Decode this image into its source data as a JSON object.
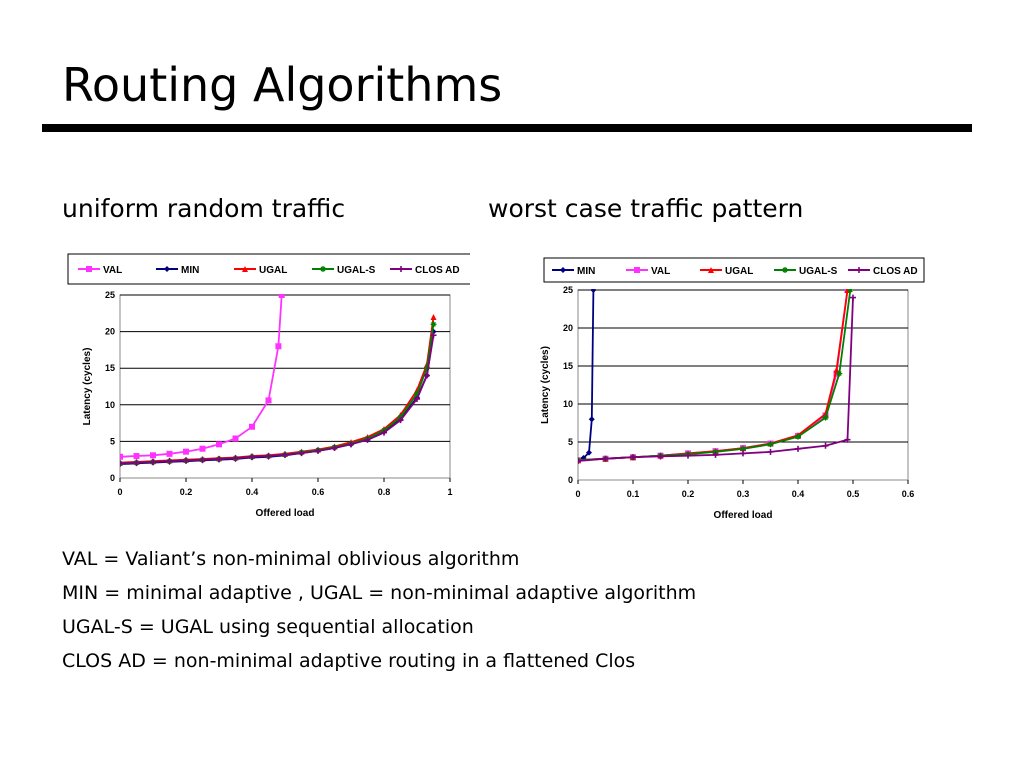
{
  "slide": {
    "title": "Routing Algorithms",
    "subtitle_left": "uniform random traffic",
    "subtitle_right": "worst case traffic pattern",
    "notes": [
      "VAL = Valiant’s non-minimal oblivious algorithm",
      "MIN = minimal adaptive , UGAL = non-minimal adaptive algorithm",
      "UGAL-S = UGAL using sequential allocation",
      "CLOS AD = non-minimal adaptive routing in a flattened Clos"
    ]
  },
  "chart_data": [
    {
      "type": "line",
      "title": "uniform random traffic",
      "xlabel": "Offered load",
      "ylabel": "Latency (cycles)",
      "xlim": [
        0,
        1
      ],
      "ylim": [
        0,
        25
      ],
      "xticks": [
        0,
        0.2,
        0.4,
        0.6,
        0.8,
        1
      ],
      "xtick_labels": [
        "0",
        "0.2",
        "0.4",
        "0.6",
        "0.8",
        "1"
      ],
      "yticks": [
        0,
        5,
        10,
        15,
        20,
        25
      ],
      "ytick_labels": [
        "0",
        "5",
        "10",
        "15",
        "20",
        "25"
      ],
      "grid": "horizontal",
      "legend_position": "top",
      "series": [
        {
          "name": "VAL",
          "color": "#ff33ff",
          "marker": "square",
          "x": [
            0,
            0.05,
            0.1,
            0.15,
            0.2,
            0.25,
            0.3,
            0.35,
            0.4,
            0.45,
            0.48,
            0.49
          ],
          "y": [
            2.9,
            3.0,
            3.1,
            3.3,
            3.6,
            4.0,
            4.6,
            5.4,
            7.0,
            10.6,
            18.0,
            25.0
          ]
        },
        {
          "name": "MIN",
          "color": "#000080",
          "marker": "diamond",
          "x": [
            0,
            0.05,
            0.1,
            0.15,
            0.2,
            0.25,
            0.3,
            0.35,
            0.4,
            0.45,
            0.5,
            0.55,
            0.6,
            0.65,
            0.7,
            0.75,
            0.8,
            0.85,
            0.9,
            0.93,
            0.95
          ],
          "y": [
            1.9,
            2.0,
            2.1,
            2.2,
            2.3,
            2.4,
            2.5,
            2.6,
            2.8,
            2.9,
            3.1,
            3.4,
            3.7,
            4.1,
            4.6,
            5.3,
            6.3,
            8.0,
            11.0,
            14.0,
            20.0
          ]
        },
        {
          "name": "UGAL",
          "color": "#ff0000",
          "marker": "triangle",
          "x": [
            0,
            0.05,
            0.1,
            0.15,
            0.2,
            0.25,
            0.3,
            0.35,
            0.4,
            0.45,
            0.5,
            0.55,
            0.6,
            0.65,
            0.7,
            0.75,
            0.8,
            0.85,
            0.9,
            0.93,
            0.95
          ],
          "y": [
            2.1,
            2.2,
            2.3,
            2.4,
            2.5,
            2.6,
            2.7,
            2.8,
            3.0,
            3.1,
            3.3,
            3.6,
            3.9,
            4.3,
            4.9,
            5.6,
            6.7,
            8.6,
            12.0,
            15.5,
            22.0
          ]
        },
        {
          "name": "UGAL-S",
          "color": "#008000",
          "marker": "star",
          "x": [
            0,
            0.05,
            0.1,
            0.15,
            0.2,
            0.25,
            0.3,
            0.35,
            0.4,
            0.45,
            0.5,
            0.55,
            0.6,
            0.65,
            0.7,
            0.75,
            0.8,
            0.85,
            0.9,
            0.93,
            0.95
          ],
          "y": [
            2.0,
            2.1,
            2.2,
            2.3,
            2.4,
            2.5,
            2.6,
            2.7,
            2.9,
            3.0,
            3.2,
            3.5,
            3.8,
            4.2,
            4.7,
            5.4,
            6.5,
            8.3,
            11.5,
            15.0,
            21.0
          ]
        },
        {
          "name": "CLOS AD",
          "color": "#800080",
          "marker": "plus",
          "x": [
            0,
            0.05,
            0.1,
            0.15,
            0.2,
            0.25,
            0.3,
            0.35,
            0.4,
            0.45,
            0.5,
            0.55,
            0.6,
            0.65,
            0.7,
            0.75,
            0.8,
            0.85,
            0.9,
            0.93,
            0.95
          ],
          "y": [
            2.0,
            2.1,
            2.2,
            2.3,
            2.4,
            2.5,
            2.6,
            2.7,
            2.9,
            3.0,
            3.2,
            3.4,
            3.7,
            4.1,
            4.6,
            5.2,
            6.2,
            7.9,
            10.8,
            14.0,
            19.5
          ]
        }
      ]
    },
    {
      "type": "line",
      "title": "worst case traffic pattern",
      "xlabel": "Offered load",
      "ylabel": "Latency (cycles)",
      "xlim": [
        0,
        0.6
      ],
      "ylim": [
        0,
        25
      ],
      "xticks": [
        0,
        0.1,
        0.2,
        0.3,
        0.4,
        0.5,
        0.6
      ],
      "xtick_labels": [
        "0",
        "0.1",
        "0.2",
        "0.3",
        "0.4",
        "0.5",
        "0.6"
      ],
      "yticks": [
        0,
        5,
        10,
        15,
        20,
        25
      ],
      "ytick_labels": [
        "0",
        "5",
        "10",
        "15",
        "20",
        "25"
      ],
      "grid": "horizontal",
      "legend_position": "top",
      "series": [
        {
          "name": "MIN",
          "color": "#000080",
          "marker": "diamond",
          "x": [
            0,
            0.01,
            0.02,
            0.025,
            0.028
          ],
          "y": [
            2.6,
            2.9,
            3.6,
            8.0,
            25.0
          ]
        },
        {
          "name": "VAL",
          "color": "#ff33ff",
          "marker": "square",
          "x": [
            0,
            0.05,
            0.1,
            0.15,
            0.2,
            0.25,
            0.3,
            0.35,
            0.4,
            0.45,
            0.47,
            0.49
          ],
          "y": [
            2.6,
            2.8,
            3.0,
            3.2,
            3.5,
            3.8,
            4.2,
            4.8,
            5.8,
            8.5,
            14.0,
            25.0
          ]
        },
        {
          "name": "UGAL",
          "color": "#ff0000",
          "marker": "triangle",
          "x": [
            0,
            0.05,
            0.1,
            0.15,
            0.2,
            0.25,
            0.3,
            0.35,
            0.4,
            0.45,
            0.47,
            0.49
          ],
          "y": [
            2.6,
            2.8,
            3.0,
            3.2,
            3.5,
            3.8,
            4.2,
            4.8,
            5.9,
            8.7,
            14.5,
            25.0
          ]
        },
        {
          "name": "UGAL-S",
          "color": "#008000",
          "marker": "star",
          "x": [
            0,
            0.05,
            0.1,
            0.15,
            0.2,
            0.25,
            0.3,
            0.35,
            0.4,
            0.45,
            0.475,
            0.495
          ],
          "y": [
            2.6,
            2.8,
            3.0,
            3.2,
            3.4,
            3.7,
            4.1,
            4.7,
            5.7,
            8.2,
            14.0,
            25.0
          ]
        },
        {
          "name": "CLOS AD",
          "color": "#800080",
          "marker": "plus",
          "x": [
            0,
            0.05,
            0.1,
            0.15,
            0.2,
            0.25,
            0.3,
            0.35,
            0.4,
            0.45,
            0.49,
            0.5
          ],
          "y": [
            2.5,
            2.8,
            3.0,
            3.1,
            3.2,
            3.3,
            3.5,
            3.7,
            4.1,
            4.5,
            5.3,
            24.0
          ]
        }
      ]
    }
  ]
}
